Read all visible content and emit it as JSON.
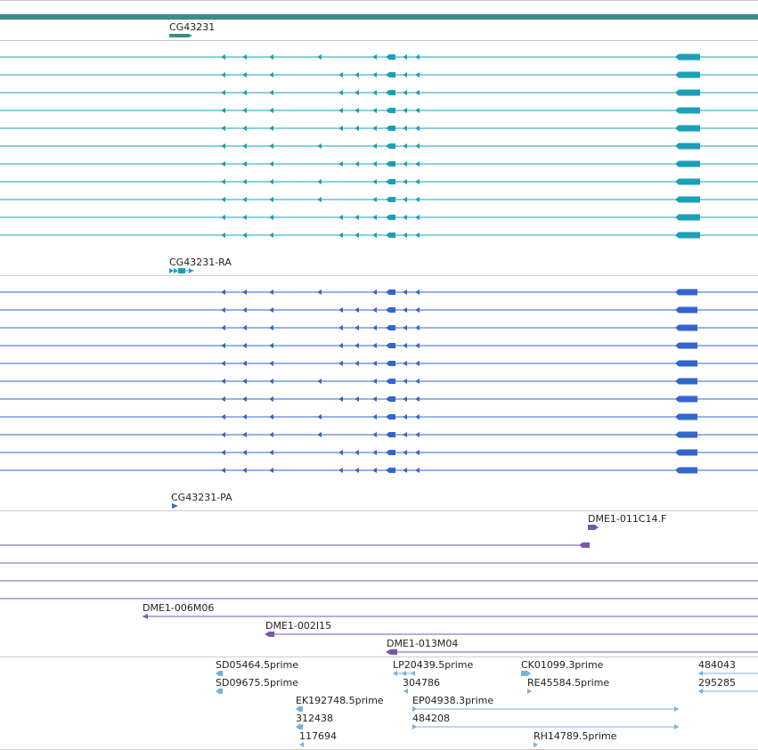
{
  "colors": {
    "gene": "#3a8c8c",
    "transcript_ra": "#1aa0b8",
    "transcript_pa": "#3366cc",
    "clone": "#7a58a8",
    "est": "#7ab0d8",
    "separator": "#cccccc"
  },
  "gene": {
    "label": "CG43231",
    "icon": "right-arrow-icon"
  },
  "ra": {
    "label": "CG43231-RA",
    "icon": "right-arrow-icon"
  },
  "pa": {
    "label": "CG43231-PA",
    "icon": "right-arrow-icon"
  },
  "clones": {
    "c1": "DME1-011C14.F",
    "c2": "DME1-006M06",
    "c3": "DME1-002I15",
    "c4": "DME1-013M04"
  },
  "ests": {
    "e1": "SD05464.5prime",
    "e2": "LP20439.5prime",
    "e3": "CK01099.3prime",
    "e4": "484043",
    "e5": "SD09675.5prime",
    "e6": "304786",
    "e7": "RE45584.5prime",
    "e8": "295285",
    "e9": "EK192748.5prime",
    "e10": "EP04938.3prime",
    "e11": "312438",
    "e12": "484208",
    "e13": "117694",
    "e14": "RH14789.5prime"
  }
}
